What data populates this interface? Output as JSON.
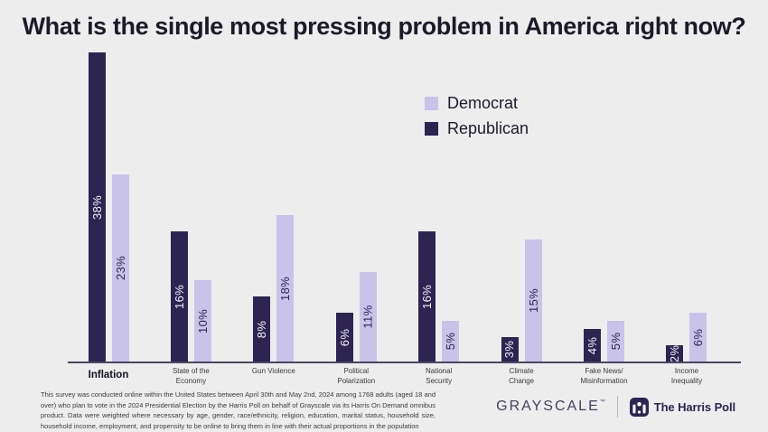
{
  "chart_data": {
    "type": "bar",
    "title": "What is the single most pressing problem in America right now?",
    "categories": [
      "Inflation",
      "State of the\nEconomy",
      "Gun Violence",
      "Political\nPolarization",
      "National\nSecurity",
      "Climate\nChange",
      "Fake News/\nMisinformation",
      "Income\nInequality"
    ],
    "series": [
      {
        "name": "Republican",
        "color": "#2d2452",
        "values": [
          38,
          16,
          8,
          6,
          16,
          3,
          4,
          2
        ]
      },
      {
        "name": "Democrat",
        "color": "#c9c3e9",
        "values": [
          23,
          10,
          18,
          11,
          5,
          15,
          5,
          6
        ]
      }
    ],
    "legend": [
      {
        "label": "Democrat",
        "color": "#c9c3e9"
      },
      {
        "label": "Republican",
        "color": "#2d2452"
      }
    ],
    "value_suffix": "%",
    "ylim": [
      0,
      40
    ],
    "grid": false,
    "legend_position": "upper-center-right",
    "bar_label_style": "rotated-90-centered-inside"
  },
  "footer": {
    "disclaimer": "This survey was conducted online within the United States between April 30th and May 2nd, 2024 among 1768 adults (aged 18 and over) who plan to vote in the 2024 Presidential Election by the Harris Poll on behalf of Grayscale via its Harris On Demand omnibus product. Data were weighted where necessary by age, gender, race/ethnicity, religion, education, marital status, household size, household income, employment, and propensity to be online to bring them in line with their actual proportions in the population",
    "brands": {
      "grayscale": "GRAYSCALE",
      "grayscale_trademark": "™",
      "harris_poll": "The Harris Poll"
    }
  },
  "colors": {
    "background": "#ededed",
    "title": "#1c1928",
    "axis": "#4a4662",
    "republican": "#2d2452",
    "democrat": "#c9c3e9"
  }
}
